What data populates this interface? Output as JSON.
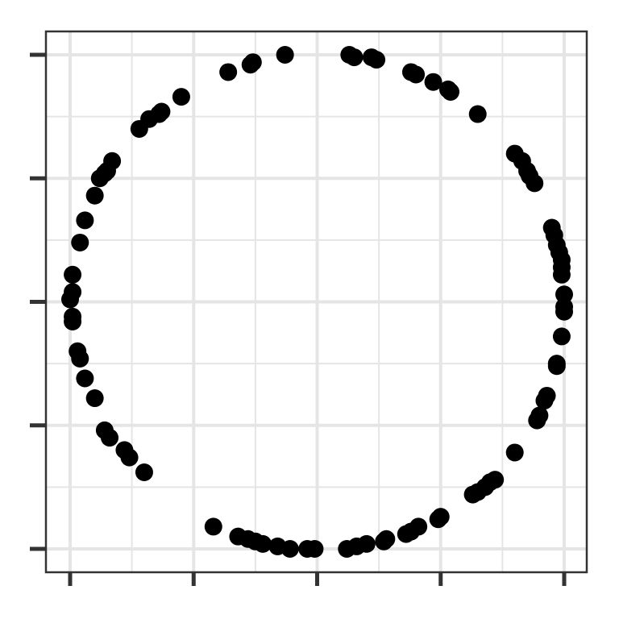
{
  "chart_data": {
    "type": "scatter",
    "title": "",
    "xlabel": "",
    "ylabel": "",
    "xlim": [
      -1.0,
      1.0
    ],
    "ylim": [
      -1.0,
      1.0
    ],
    "x_ticks": [
      -1.0,
      -0.5,
      0.0,
      0.5,
      1.0
    ],
    "y_ticks": [
      -1.0,
      -0.5,
      0.0,
      0.5,
      1.0
    ],
    "tick_labels_shown": false,
    "grid": true,
    "legend": "none",
    "point_color": "#000000",
    "grid_color": "#e5e5e5",
    "axis_color": "#333333",
    "points": [
      [
        0.13,
        1.0
      ],
      [
        0.15,
        0.99
      ],
      [
        0.22,
        0.99
      ],
      [
        0.24,
        0.98
      ],
      [
        -0.13,
        1.0
      ],
      [
        -0.26,
        0.97
      ],
      [
        -0.27,
        0.96
      ],
      [
        -0.36,
        0.93
      ],
      [
        0.38,
        0.93
      ],
      [
        0.4,
        0.92
      ],
      [
        0.47,
        0.89
      ],
      [
        0.53,
        0.86
      ],
      [
        0.54,
        0.85
      ],
      [
        -0.55,
        0.83
      ],
      [
        -0.63,
        0.77
      ],
      [
        -0.64,
        0.76
      ],
      [
        -0.68,
        0.74
      ],
      [
        -0.72,
        0.7
      ],
      [
        0.65,
        0.76
      ],
      [
        0.8,
        0.6
      ],
      [
        -0.83,
        0.57
      ],
      [
        -0.85,
        0.53
      ],
      [
        -0.86,
        0.52
      ],
      [
        -0.88,
        0.5
      ],
      [
        0.83,
        0.57
      ],
      [
        0.85,
        0.53
      ],
      [
        0.86,
        0.51
      ],
      [
        0.88,
        0.48
      ],
      [
        -0.9,
        0.43
      ],
      [
        -0.94,
        0.33
      ],
      [
        -0.96,
        0.24
      ],
      [
        0.95,
        0.3
      ],
      [
        0.96,
        0.27
      ],
      [
        0.98,
        0.2
      ],
      [
        0.97,
        0.23
      ],
      [
        0.99,
        0.17
      ],
      [
        0.99,
        0.14
      ],
      [
        0.99,
        0.11
      ],
      [
        -0.99,
        0.11
      ],
      [
        -0.99,
        0.04
      ],
      [
        -1.0,
        0.01
      ],
      [
        1.0,
        0.03
      ],
      [
        1.0,
        -0.02
      ],
      [
        1.0,
        -0.04
      ],
      [
        -0.99,
        -0.06
      ],
      [
        -0.99,
        -0.08
      ],
      [
        -0.97,
        -0.2
      ],
      [
        -0.96,
        -0.23
      ],
      [
        0.99,
        -0.14
      ],
      [
        0.97,
        -0.25
      ],
      [
        0.97,
        -0.26
      ],
      [
        -0.94,
        -0.31
      ],
      [
        -0.9,
        -0.39
      ],
      [
        0.93,
        -0.38
      ],
      [
        0.92,
        -0.4
      ],
      [
        0.9,
        -0.46
      ],
      [
        0.89,
        -0.48
      ],
      [
        -0.86,
        -0.52
      ],
      [
        -0.84,
        -0.55
      ],
      [
        0.8,
        -0.61
      ],
      [
        -0.78,
        -0.6
      ],
      [
        -0.76,
        -0.63
      ],
      [
        -0.7,
        -0.69
      ],
      [
        0.72,
        -0.72
      ],
      [
        0.7,
        -0.73
      ],
      [
        0.68,
        -0.75
      ],
      [
        0.65,
        -0.77
      ],
      [
        0.63,
        -0.78
      ],
      [
        0.5,
        -0.87
      ],
      [
        0.49,
        -0.88
      ],
      [
        -0.42,
        -0.91
      ],
      [
        0.41,
        -0.91
      ],
      [
        0.38,
        -0.93
      ],
      [
        0.36,
        -0.94
      ],
      [
        -0.32,
        -0.95
      ],
      [
        -0.28,
        -0.96
      ],
      [
        -0.25,
        -0.97
      ],
      [
        -0.22,
        -0.98
      ],
      [
        -0.16,
        -0.99
      ],
      [
        -0.11,
        -1.0
      ],
      [
        -0.04,
        -1.0
      ],
      [
        -0.01,
        -1.0
      ],
      [
        0.12,
        -1.0
      ],
      [
        0.16,
        -0.99
      ],
      [
        0.2,
        -0.98
      ],
      [
        0.27,
        -0.97
      ],
      [
        0.28,
        -0.96
      ]
    ]
  }
}
